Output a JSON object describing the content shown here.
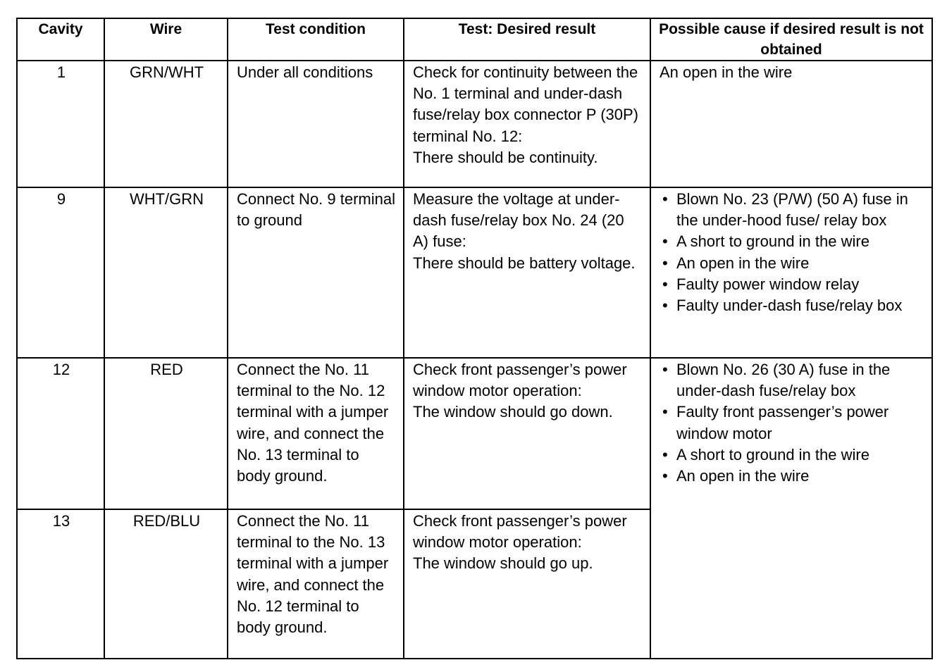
{
  "table": {
    "header": [
      "Cavity",
      "Wire",
      "Test condition",
      "Test: Desired result",
      "Possible cause if desired result is not obtained"
    ],
    "rows": [
      {
        "cavity": "1",
        "wire": "GRN/WHT",
        "condition": "Under all conditions",
        "result": [
          "Check for continuity between the No. 1 terminal and under-dash fuse/relay box connector P (30P) terminal No. 12:",
          "There should be continuity."
        ],
        "cause": "An open in the wire"
      },
      {
        "cavity": "9",
        "wire": "WHT/GRN",
        "condition": "Connect No. 9 terminal to ground",
        "result": [
          "Measure the voltage at under-dash fuse/relay box No. 24 (20 A) fuse:",
          "There should be battery voltage."
        ],
        "causes": [
          "Blown No. 23 (P/W) (50 A) fuse in the under-hood fuse/ relay box",
          "A short to ground in the wire",
          "An open in the wire",
          "Faulty power window relay",
          "Faulty under-dash fuse/relay box"
        ]
      },
      {
        "cavity": "12",
        "wire": "RED",
        "condition": "Connect the No. 11 terminal to the No. 12 terminal with a jumper wire, and connect the No. 13 terminal to body ground.",
        "result": [
          "Check front passenger’s power window motor operation:",
          "The window should go down."
        ],
        "causes": [
          "Blown No. 26 (30 A) fuse in the under-dash fuse/relay box",
          "Faulty front passenger’s power window motor",
          "A short to ground in the wire",
          "An open in the wire"
        ]
      },
      {
        "cavity": "13",
        "wire": "RED/BLU",
        "condition": "Connect the No. 11 terminal to the No. 13 terminal with a jumper wire, and connect the No. 12 terminal to body ground.",
        "result": [
          "Check front passenger’s power window motor operation:",
          "The window should go up."
        ]
      }
    ]
  }
}
